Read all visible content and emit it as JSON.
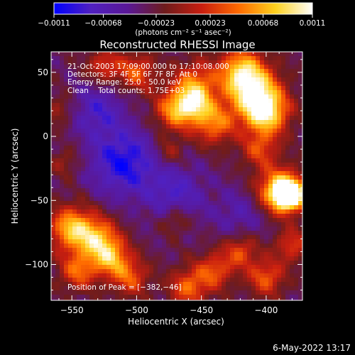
{
  "chart_data": {
    "type": "heatmap",
    "title": "Reconstructed RHESSI Image",
    "xlabel": "Heliocentric X (arcsec)",
    "ylabel": "Heliocentric Y (arcsec)",
    "xlim": [
      -566,
      -372
    ],
    "ylim": [
      -128,
      66
    ],
    "x_ticks": [
      -550,
      -500,
      -450,
      -400
    ],
    "x_tick_labels": [
      "−550",
      "−500",
      "−450",
      "−400"
    ],
    "y_ticks": [
      50,
      0,
      -50,
      -100
    ],
    "y_tick_labels": [
      "50",
      "0",
      "−50",
      "−100"
    ],
    "colorbar": {
      "ticks": [
        -0.0011,
        -0.00068,
        -0.00023,
        0.00023,
        0.00068,
        0.0011
      ],
      "tick_labels": [
        "−0.0011",
        "−0.00068",
        "−0.00023",
        "0.00023",
        "0.00068",
        "0.0011"
      ],
      "units_label": "(photons cm⁻² s⁻¹ asec⁻²)",
      "colors": [
        "#0000ff",
        "#5020c0",
        "#5a1896",
        "#6e1c1c",
        "#c81e10",
        "#ff6a00",
        "#ffd21e",
        "#ffffff"
      ]
    },
    "annotations": [
      "21-Oct-2003 17:09:00.000 to 17:10:08.000",
      "Detectors: 3F 4F 5F 6F 7F 8F, Att 0",
      "Energy Range: 25.0 - 50.0 keV",
      "Clean    Total counts: 1.75E+03"
    ],
    "peak_label": "Position of Peak = [−382,−46]",
    "peak": {
      "x": -382,
      "y": -46
    },
    "blobs": [
      {
        "x": -382,
        "y": -46,
        "amp": 1.0,
        "r": 8
      },
      {
        "x": -390,
        "y": -42,
        "amp": 0.7,
        "r": 12
      },
      {
        "x": -410,
        "y": 35,
        "amp": 0.72,
        "r": 14
      },
      {
        "x": -400,
        "y": 18,
        "amp": 0.7,
        "r": 12
      },
      {
        "x": -420,
        "y": 52,
        "amp": 0.55,
        "r": 12
      },
      {
        "x": -455,
        "y": 40,
        "amp": 0.5,
        "r": 12
      },
      {
        "x": -470,
        "y": 20,
        "amp": 0.55,
        "r": 11
      },
      {
        "x": -440,
        "y": 10,
        "amp": 0.5,
        "r": 11
      },
      {
        "x": -455,
        "y": 25,
        "amp": 0.45,
        "r": 9
      },
      {
        "x": -500,
        "y": 50,
        "amp": 0.42,
        "r": 10
      },
      {
        "x": -525,
        "y": 55,
        "amp": 0.35,
        "r": 9
      },
      {
        "x": -405,
        "y": -10,
        "amp": 0.35,
        "r": 10
      },
      {
        "x": -550,
        "y": -72,
        "amp": 0.65,
        "r": 12
      },
      {
        "x": -530,
        "y": -80,
        "amp": 0.55,
        "r": 11
      },
      {
        "x": -520,
        "y": -95,
        "amp": 0.55,
        "r": 10
      },
      {
        "x": -545,
        "y": -105,
        "amp": 0.45,
        "r": 10
      },
      {
        "x": -505,
        "y": -110,
        "amp": 0.4,
        "r": 10
      },
      {
        "x": -460,
        "y": -118,
        "amp": 0.45,
        "r": 10
      },
      {
        "x": -440,
        "y": -105,
        "amp": 0.4,
        "r": 10
      },
      {
        "x": -420,
        "y": -90,
        "amp": 0.38,
        "r": 9
      },
      {
        "x": -400,
        "y": -110,
        "amp": 0.42,
        "r": 10
      },
      {
        "x": -380,
        "y": -85,
        "amp": 0.35,
        "r": 9
      },
      {
        "x": -470,
        "y": -65,
        "amp": 0.25,
        "r": 8
      },
      {
        "x": -475,
        "y": -12,
        "amp": 0.22,
        "r": 8
      },
      {
        "x": -560,
        "y": 20,
        "amp": 0.2,
        "r": 8
      },
      {
        "x": -555,
        "y": -20,
        "amp": 0.18,
        "r": 8
      },
      {
        "x": -510,
        "y": -20,
        "amp": -0.45,
        "r": 18
      },
      {
        "x": -530,
        "y": 20,
        "amp": -0.3,
        "r": 14
      },
      {
        "x": -470,
        "y": -45,
        "amp": -0.3,
        "r": 16
      },
      {
        "x": -420,
        "y": -60,
        "amp": -0.2,
        "r": 14
      }
    ]
  },
  "footer": {
    "date": "6-May-2022 13:17"
  }
}
